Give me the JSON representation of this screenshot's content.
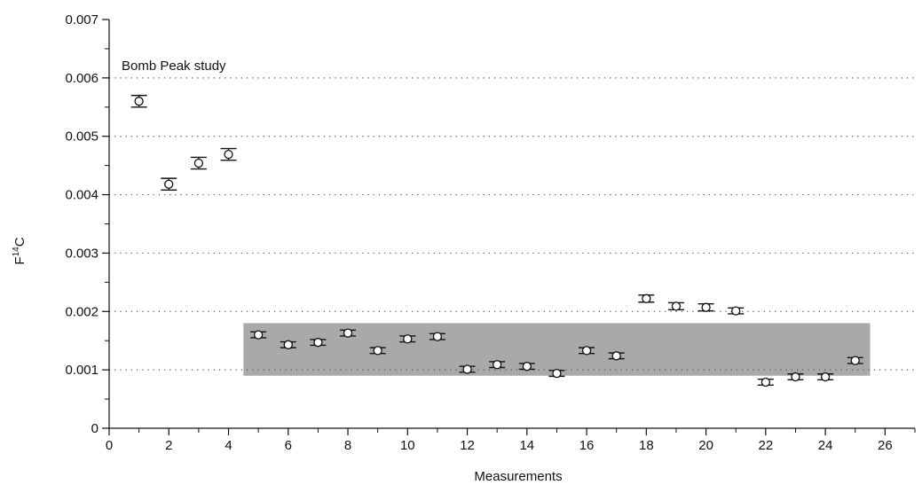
{
  "chart_data": {
    "type": "scatter",
    "annotation": "Bomb Peak study",
    "xlabel": "Measurements",
    "ylabel": {
      "base": "F",
      "superscript": "14",
      "suffix": "C"
    },
    "xlim": [
      0,
      27
    ],
    "ylim": [
      0,
      0.007
    ],
    "x_ticks": [
      0,
      2,
      4,
      6,
      8,
      10,
      12,
      14,
      16,
      18,
      20,
      22,
      24,
      26
    ],
    "x_tick_labels": [
      "0",
      "2",
      "4",
      "6",
      "8",
      "10",
      "12",
      "14",
      "16",
      "18",
      "20",
      "22",
      "24",
      "26"
    ],
    "y_ticks": [
      0,
      0.001,
      0.002,
      0.003,
      0.004,
      0.005,
      0.006,
      0.007
    ],
    "y_tick_labels": [
      "0",
      "0.001",
      "0.002",
      "0.003",
      "0.004",
      "0.005",
      "0.006",
      "0.007"
    ],
    "y_minor_step": 0.0005,
    "x_minor_step": 1,
    "grid": {
      "horizontal_dotted": [
        0.001,
        0.002,
        0.003,
        0.004,
        0.005,
        0.006
      ]
    },
    "shaded_band": {
      "x": [
        4.5,
        25.5
      ],
      "y": [
        0.0009,
        0.0018
      ],
      "color": "#a9a9a9"
    },
    "series": [
      {
        "x": [
          1,
          2,
          3,
          4,
          5,
          6,
          7,
          8,
          9,
          10,
          11,
          12,
          13,
          14,
          15,
          16,
          17,
          18,
          19,
          20,
          21,
          22,
          23,
          24,
          25
        ],
        "y": [
          0.0056,
          0.00418,
          0.00454,
          0.00469,
          0.0016,
          0.00143,
          0.00147,
          0.00163,
          0.00133,
          0.00153,
          0.00157,
          0.00101,
          0.00109,
          0.00106,
          0.00094,
          0.00133,
          0.00124,
          0.00222,
          0.00209,
          0.00207,
          0.00201,
          0.00079,
          0.00088,
          0.00088,
          0.00116
        ],
        "error": [
          0.0001,
          0.0001,
          0.0001,
          0.0001,
          5e-05,
          5e-05,
          5e-05,
          5e-05,
          5e-05,
          5e-05,
          5e-05,
          5e-05,
          5e-05,
          5e-05,
          5e-05,
          5e-05,
          5e-05,
          6e-05,
          6e-05,
          6e-05,
          5e-05,
          5e-05,
          5e-05,
          5e-05,
          5e-05
        ]
      }
    ],
    "colors": {
      "marker_fill": "#ffffff",
      "marker_stroke": "#111111",
      "axis": "#111111",
      "grid": "#555555"
    }
  }
}
